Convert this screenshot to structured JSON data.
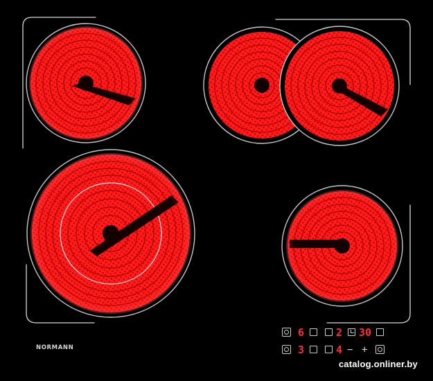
{
  "brand": "NORMANN",
  "controls": {
    "row1": {
      "zone_a_level": "6",
      "zone_b_level": "2",
      "timer_minutes": "30"
    },
    "row2": {
      "zone_c_level": "3",
      "zone_d_level": "4",
      "minus_symbol": "−",
      "plus_symbol": "+"
    }
  },
  "watermark": "catalog.onliner.by",
  "colors": {
    "glass": "#000000",
    "element": "#ff1a1a",
    "digit": "#ff2f2f",
    "frame": "#d9d9d9"
  }
}
